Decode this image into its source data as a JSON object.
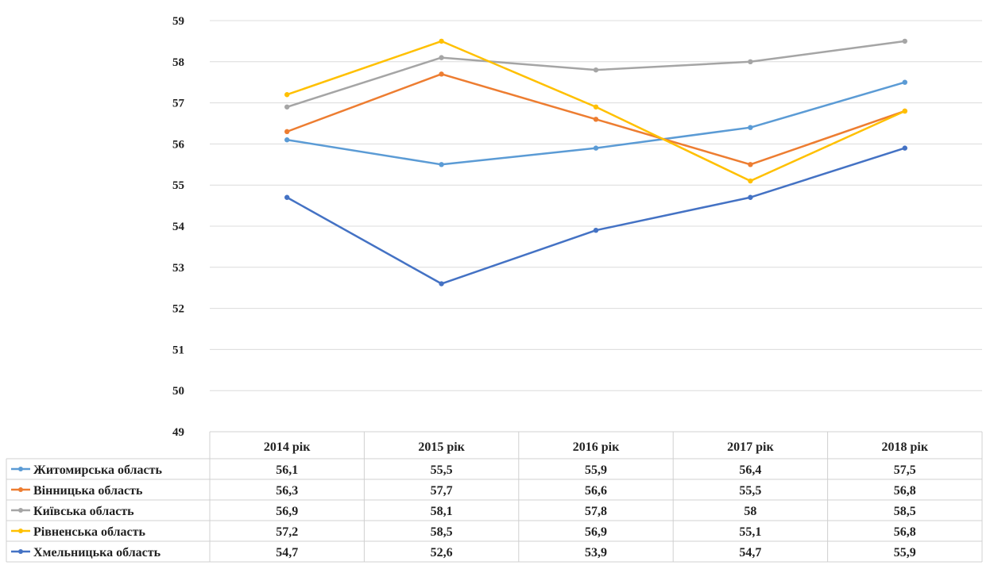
{
  "chart_data": {
    "type": "line",
    "title": "",
    "xlabel": "",
    "ylabel": "",
    "categories": [
      "2014 рік",
      "2015 рік",
      "2016 рік",
      "2017 рік",
      "2018 рік"
    ],
    "ylim": [
      49,
      59
    ],
    "yticks": [
      49,
      50,
      51,
      52,
      53,
      54,
      55,
      56,
      57,
      58,
      59
    ],
    "grid": true,
    "legend": "data-table-left",
    "series": [
      {
        "name": "Житомирська область",
        "color": "#5B9BD5",
        "values": [
          56.1,
          55.5,
          55.9,
          56.4,
          57.5
        ],
        "labels": [
          "56,1",
          "55,5",
          "55,9",
          "56,4",
          "57,5"
        ]
      },
      {
        "name": "Вінницька область",
        "color": "#ED7D31",
        "values": [
          56.3,
          57.7,
          56.6,
          55.5,
          56.8
        ],
        "labels": [
          "56,3",
          "57,7",
          "56,6",
          "55,5",
          "56,8"
        ]
      },
      {
        "name": "Київська область",
        "color": "#A5A5A5",
        "values": [
          56.9,
          58.1,
          57.8,
          58,
          58.5
        ],
        "labels": [
          "56,9",
          "58,1",
          "57,8",
          "58",
          "58,5"
        ]
      },
      {
        "name": "Рівненська область",
        "color": "#FFC000",
        "values": [
          57.2,
          58.5,
          56.9,
          55.1,
          56.8
        ],
        "labels": [
          "57,2",
          "58,5",
          "56,9",
          "55,1",
          "56,8"
        ]
      },
      {
        "name": "Хмельницька область",
        "color": "#4472C4",
        "values": [
          54.7,
          52.6,
          53.9,
          54.7,
          55.9
        ],
        "labels": [
          "54,7",
          "52,6",
          "53,9",
          "54,7",
          "55,9"
        ]
      }
    ]
  }
}
